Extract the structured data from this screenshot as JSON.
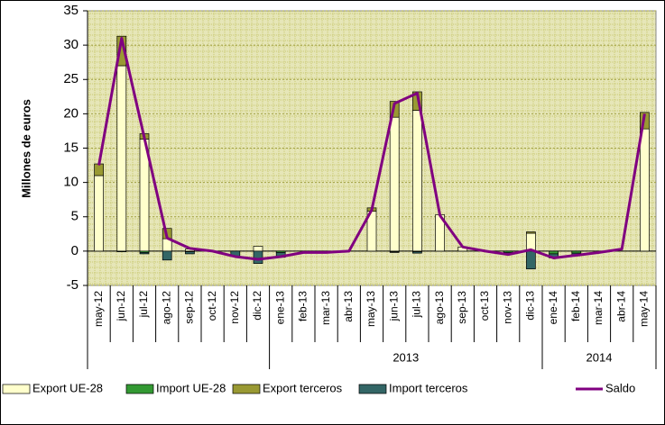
{
  "chart_data": {
    "type": "stacked-bar-line",
    "y_label": "Millones de euros",
    "categories": [
      "may-12",
      "jun-12",
      "jul-12",
      "ago-12",
      "sep-12",
      "oct-12",
      "nov-12",
      "dic-12",
      "ene-13",
      "feb-13",
      "mar-13",
      "abr-13",
      "may-13",
      "jun-13",
      "jul-13",
      "ago-13",
      "sep-13",
      "oct-13",
      "nov-13",
      "dic-13",
      "ene-14",
      "feb-14",
      "mar-14",
      "abr-14",
      "may-14"
    ],
    "year_groups": [
      {
        "label": "2013",
        "from": 8,
        "to": 19
      },
      {
        "label": "2014",
        "from": 20,
        "to": 24
      }
    ],
    "series": [
      {
        "name": "Export UE-28",
        "kind": "bar",
        "color": "#ffffcc",
        "values": [
          11,
          27,
          16.3,
          1.8,
          0.3,
          0,
          0,
          0.7,
          0,
          0,
          0,
          0,
          5.8,
          19.5,
          20.5,
          5.3,
          0.6,
          0,
          0,
          2.6,
          0,
          0,
          0,
          0,
          17.8
        ]
      },
      {
        "name": "Import UE-28",
        "kind": "bar",
        "color": "#339933",
        "values": [
          0,
          -0.1,
          -0.2,
          0,
          -0.1,
          0,
          0,
          0,
          -0.2,
          0,
          0,
          0,
          0,
          -0.1,
          -0.1,
          0,
          0,
          0,
          -0.2,
          0,
          -0.4,
          -0.3,
          0,
          0,
          0
        ]
      },
      {
        "name": "Export terceros",
        "kind": "bar",
        "color": "#999933",
        "values": [
          1.7,
          4.3,
          0.8,
          1.5,
          0,
          0,
          0,
          0,
          0,
          0,
          0,
          0,
          0.5,
          2.3,
          2.7,
          0,
          0,
          0,
          0,
          0.2,
          0,
          0,
          0,
          0,
          2.4
        ]
      },
      {
        "name": "Import terceros",
        "kind": "bar",
        "color": "#336666",
        "values": [
          0,
          0,
          -0.2,
          -1.3,
          -0.3,
          0,
          -0.8,
          -1.8,
          -0.7,
          0,
          0,
          0,
          0,
          -0.1,
          -0.2,
          0,
          0,
          0,
          -0.3,
          -2.6,
          -0.6,
          -0.3,
          0,
          0,
          0
        ]
      },
      {
        "name": "Saldo",
        "kind": "line",
        "color": "#800080",
        "values": [
          12.5,
          31,
          16.5,
          1.9,
          0.4,
          0,
          -0.8,
          -1.2,
          -0.8,
          -0.2,
          -0.2,
          0,
          6,
          21.5,
          23,
          5.2,
          0.6,
          0,
          -0.5,
          0.2,
          -1,
          -0.6,
          -0.2,
          0.3,
          20
        ]
      }
    ],
    "ylim": [
      -5,
      35
    ],
    "yticks": [
      -5,
      0,
      5,
      10,
      15,
      20,
      25,
      30,
      35
    ],
    "grid": true
  }
}
